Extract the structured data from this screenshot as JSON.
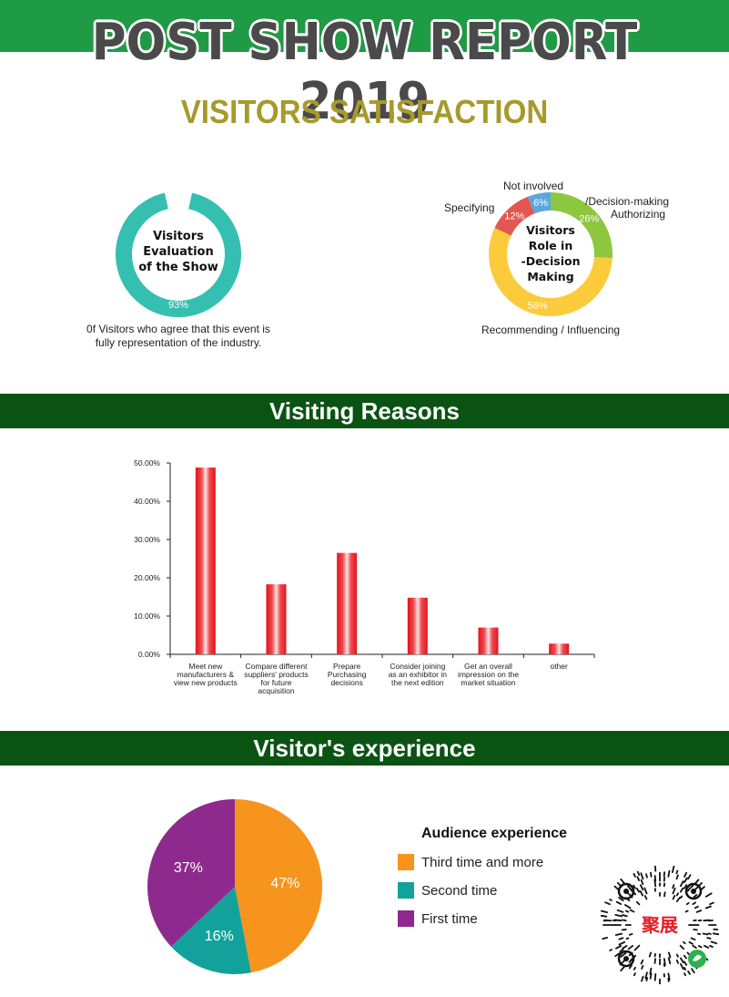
{
  "header": {
    "title": "POST SHOW REPORT 2019",
    "subtitle": "VISITORS SATISFACTION"
  },
  "evaluation": {
    "center_lines": [
      "Visitors",
      "Evaluation",
      "of the Show"
    ],
    "percent_label": "93%",
    "caption_lines": [
      "0f Visitors who agree that this event is",
      "fully representation of the industry."
    ],
    "value": 93,
    "color": "#35bfb1"
  },
  "role": {
    "center_lines": [
      "Visitors",
      "Role in",
      "-Decision",
      "Making"
    ],
    "labels": {
      "not_involved": "Not involved",
      "specifying": "Specifying",
      "decision_line1": "/Decision-making",
      "decision_line2": "Authorizing",
      "recommending": "Recommending / Influencing"
    },
    "slices": [
      {
        "label": "Decision-making / Authorizing",
        "value": 26,
        "text": "26%",
        "color": "#8dc63f"
      },
      {
        "label": "Recommending / Influencing",
        "value": 56,
        "text": "56%",
        "color": "#fccb3b"
      },
      {
        "label": "Specifying",
        "value": 12,
        "text": "12%",
        "color": "#e2574f"
      },
      {
        "label": "Not involved",
        "value": 6,
        "text": "6%",
        "color": "#5aa7de"
      }
    ]
  },
  "sections": {
    "reasons_title": "Visiting Reasons",
    "experience_title": "Visitor's experience"
  },
  "chart_data": [
    {
      "type": "bar",
      "categories": [
        [
          "Meet new",
          "manufacturers &",
          "view new products"
        ],
        [
          "Compare different",
          "suppliers' products",
          "for future",
          "acquisition"
        ],
        [
          "Prepare",
          "Purchasing",
          "decisions"
        ],
        [
          "Consider joining",
          "as an exhibitor in",
          "the next edition"
        ],
        [
          "Get an overall",
          "impression on the",
          "market situation"
        ],
        [
          "other"
        ]
      ],
      "values": [
        48.8,
        18.3,
        26.5,
        14.8,
        7.0,
        2.8
      ],
      "ylim": [
        0,
        50
      ],
      "yticks": [
        "0.00%",
        "10.00%",
        "20.00%",
        "30.00%",
        "40.00%",
        "50.00%"
      ],
      "bar_color": "#e8111a"
    },
    {
      "type": "pie",
      "title": "Audience experience",
      "slices": [
        {
          "label": "Third time and more",
          "value": 47,
          "text": "47%",
          "color": "#f7941d"
        },
        {
          "label": "Second time",
          "value": 16,
          "text": "16%",
          "color": "#12a29b"
        },
        {
          "label": "First time",
          "value": 37,
          "text": "37%",
          "color": "#8e2a8e"
        }
      ]
    }
  ],
  "qr": {
    "logo_text": "聚展"
  }
}
